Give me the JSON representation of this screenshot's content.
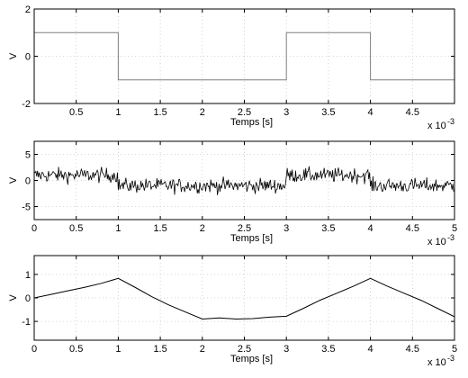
{
  "chart_data": [
    {
      "type": "line",
      "title": "",
      "xlabel": "Temps [s]",
      "ylabel": "V",
      "x_multiplier_label": "x 10",
      "x_multiplier_exp": "-3",
      "xlim": [
        0,
        5
      ],
      "ylim": [
        -2,
        2
      ],
      "grid": true,
      "xticks": [
        0.5,
        1,
        1.5,
        2,
        2.5,
        3,
        3.5,
        4,
        4.5
      ],
      "yticks": [
        -2,
        0,
        2
      ],
      "xtick_labels": [
        "0.5",
        "1",
        "1.5",
        "2",
        "2.5",
        "3",
        "3.5",
        "4",
        "4.5"
      ],
      "ytick_labels": [
        "-2",
        "0",
        "2"
      ],
      "series": [
        {
          "color": "#7f7f7f",
          "x": [
            0,
            1,
            1,
            3,
            3,
            4,
            4,
            5
          ],
          "y": [
            1,
            1,
            -1,
            -1,
            1,
            1,
            -1,
            -1
          ]
        }
      ]
    },
    {
      "type": "line",
      "title": "",
      "xlabel": "Temps [s]",
      "ylabel": "V",
      "x_multiplier_label": "x 10",
      "x_multiplier_exp": "-3",
      "xlim": [
        0,
        5
      ],
      "ylim": [
        -7.5,
        7.5
      ],
      "grid": true,
      "xticks": [
        0,
        0.5,
        1,
        1.5,
        2,
        2.5,
        3,
        3.5,
        4,
        4.5,
        5
      ],
      "yticks": [
        -5,
        0,
        5
      ],
      "xtick_labels": [
        "0",
        "0.5",
        "1",
        "1.5",
        "2",
        "2.5",
        "3",
        "3.5",
        "4",
        "4.5",
        "5"
      ],
      "ytick_labels": [
        "-5",
        "0",
        "5"
      ],
      "noise_amplitude": 1.0,
      "signal_levels": [
        {
          "from": 0,
          "to": 1,
          "level": 1
        },
        {
          "from": 1,
          "to": 3,
          "level": -1
        },
        {
          "from": 3,
          "to": 4,
          "level": 1
        },
        {
          "from": 4,
          "to": 5,
          "level": -1
        }
      ],
      "series": [
        {
          "color": "#000000",
          "x": [],
          "y": []
        }
      ]
    },
    {
      "type": "line",
      "title": "",
      "xlabel": "Temps [s]",
      "ylabel": "V",
      "x_multiplier_label": "x 10",
      "x_multiplier_exp": "-3",
      "xlim": [
        0,
        5
      ],
      "ylim": [
        -1.8,
        1.8
      ],
      "grid": true,
      "xticks": [
        0,
        0.5,
        1,
        1.5,
        2,
        2.5,
        3,
        3.5,
        4,
        4.5,
        5
      ],
      "yticks": [
        -1,
        0,
        1
      ],
      "xtick_labels": [
        "0",
        "0.5",
        "1",
        "1.5",
        "2",
        "2.5",
        "3",
        "3.5",
        "4",
        "4.5",
        "5"
      ],
      "ytick_labels": [
        "-1",
        "0",
        "1"
      ],
      "series": [
        {
          "color": "#000000",
          "x": [
            0,
            0.2,
            0.4,
            0.6,
            0.8,
            1.0,
            1.2,
            1.4,
            1.6,
            1.8,
            2.0,
            2.2,
            2.4,
            2.6,
            2.8,
            3.0,
            3.2,
            3.4,
            3.6,
            3.8,
            4.0,
            4.2,
            4.4,
            4.6,
            4.8,
            5.0
          ],
          "y": [
            0.0,
            0.15,
            0.3,
            0.45,
            0.62,
            0.83,
            0.45,
            0.05,
            -0.3,
            -0.6,
            -0.9,
            -0.85,
            -0.9,
            -0.88,
            -0.82,
            -0.78,
            -0.45,
            -0.1,
            0.2,
            0.5,
            0.83,
            0.5,
            0.2,
            -0.1,
            -0.45,
            -0.8
          ]
        }
      ]
    }
  ]
}
